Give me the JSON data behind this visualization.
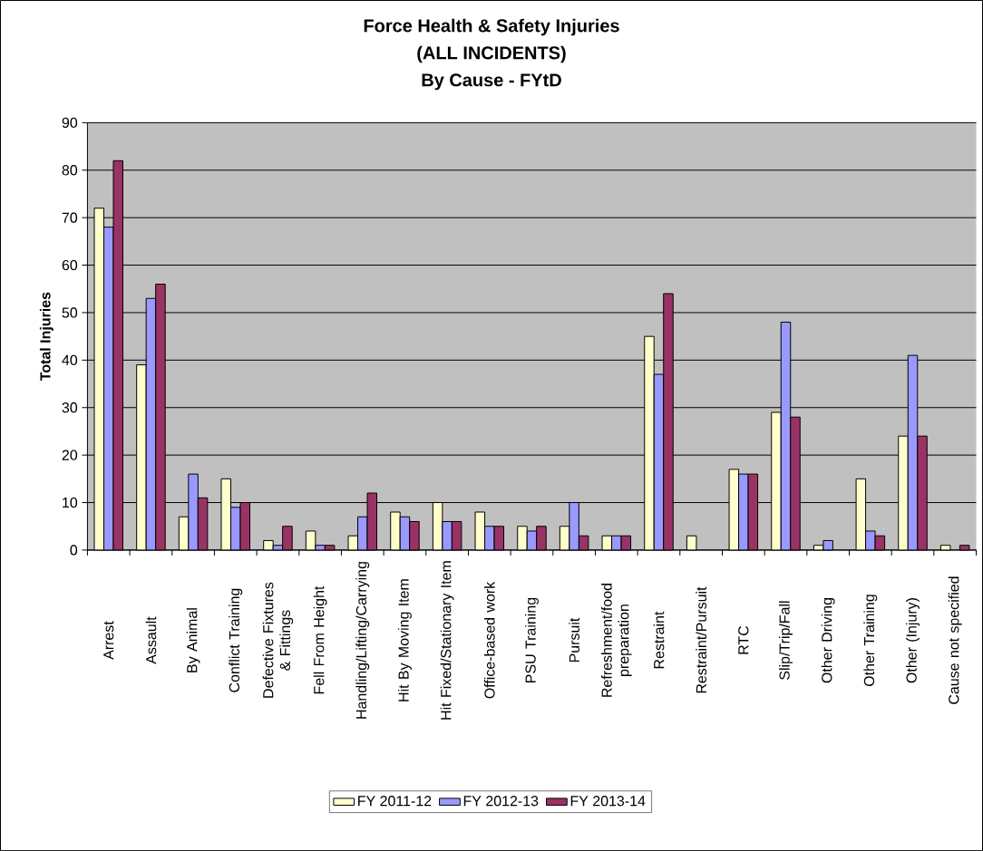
{
  "chart_data": {
    "type": "bar",
    "title": "Force Health & Safety Injuries\n(ALL INCIDENTS)\nBy Cause - FYtD",
    "ylabel": "Total Injuries",
    "categories": [
      "Arrest",
      "Assault",
      "By Animal",
      "Conflict Training",
      "Defective Fixtures & Fittings",
      "Fell From Height",
      "Handling/Lifting/Carrying",
      "Hit By Moving Item",
      "Hit Fixed/Stationary Item",
      "Office-based work",
      "PSU Training",
      "Pursuit",
      "Refreshment/food preparation",
      "Restraint",
      "Restraint/Pursuit",
      "RTC",
      "Slip/Trip/Fall",
      "Other Driving",
      "Other Training",
      "Other (Injury)",
      "Cause not specified"
    ],
    "series": [
      {
        "name": "FY 2011-12",
        "color": "#ffffcc",
        "values": [
          72,
          39,
          7,
          15,
          2,
          4,
          3,
          8,
          10,
          8,
          5,
          5,
          3,
          45,
          3,
          17,
          29,
          1,
          15,
          24,
          1
        ]
      },
      {
        "name": "FY 2012-13",
        "color": "#9999ff",
        "values": [
          68,
          53,
          16,
          9,
          1,
          1,
          7,
          7,
          6,
          5,
          4,
          10,
          3,
          37,
          null,
          16,
          48,
          2,
          4,
          41,
          null
        ]
      },
      {
        "name": "FY 2013-14",
        "color": "#993366",
        "values": [
          82,
          56,
          11,
          10,
          5,
          1,
          12,
          6,
          6,
          5,
          5,
          3,
          3,
          54,
          null,
          16,
          28,
          null,
          3,
          24,
          1
        ]
      }
    ],
    "ylim": [
      0,
      90
    ],
    "yticks": [
      0,
      10,
      20,
      30,
      40,
      50,
      60,
      70,
      80,
      90
    ],
    "grid": "y",
    "legend": "bottom"
  }
}
